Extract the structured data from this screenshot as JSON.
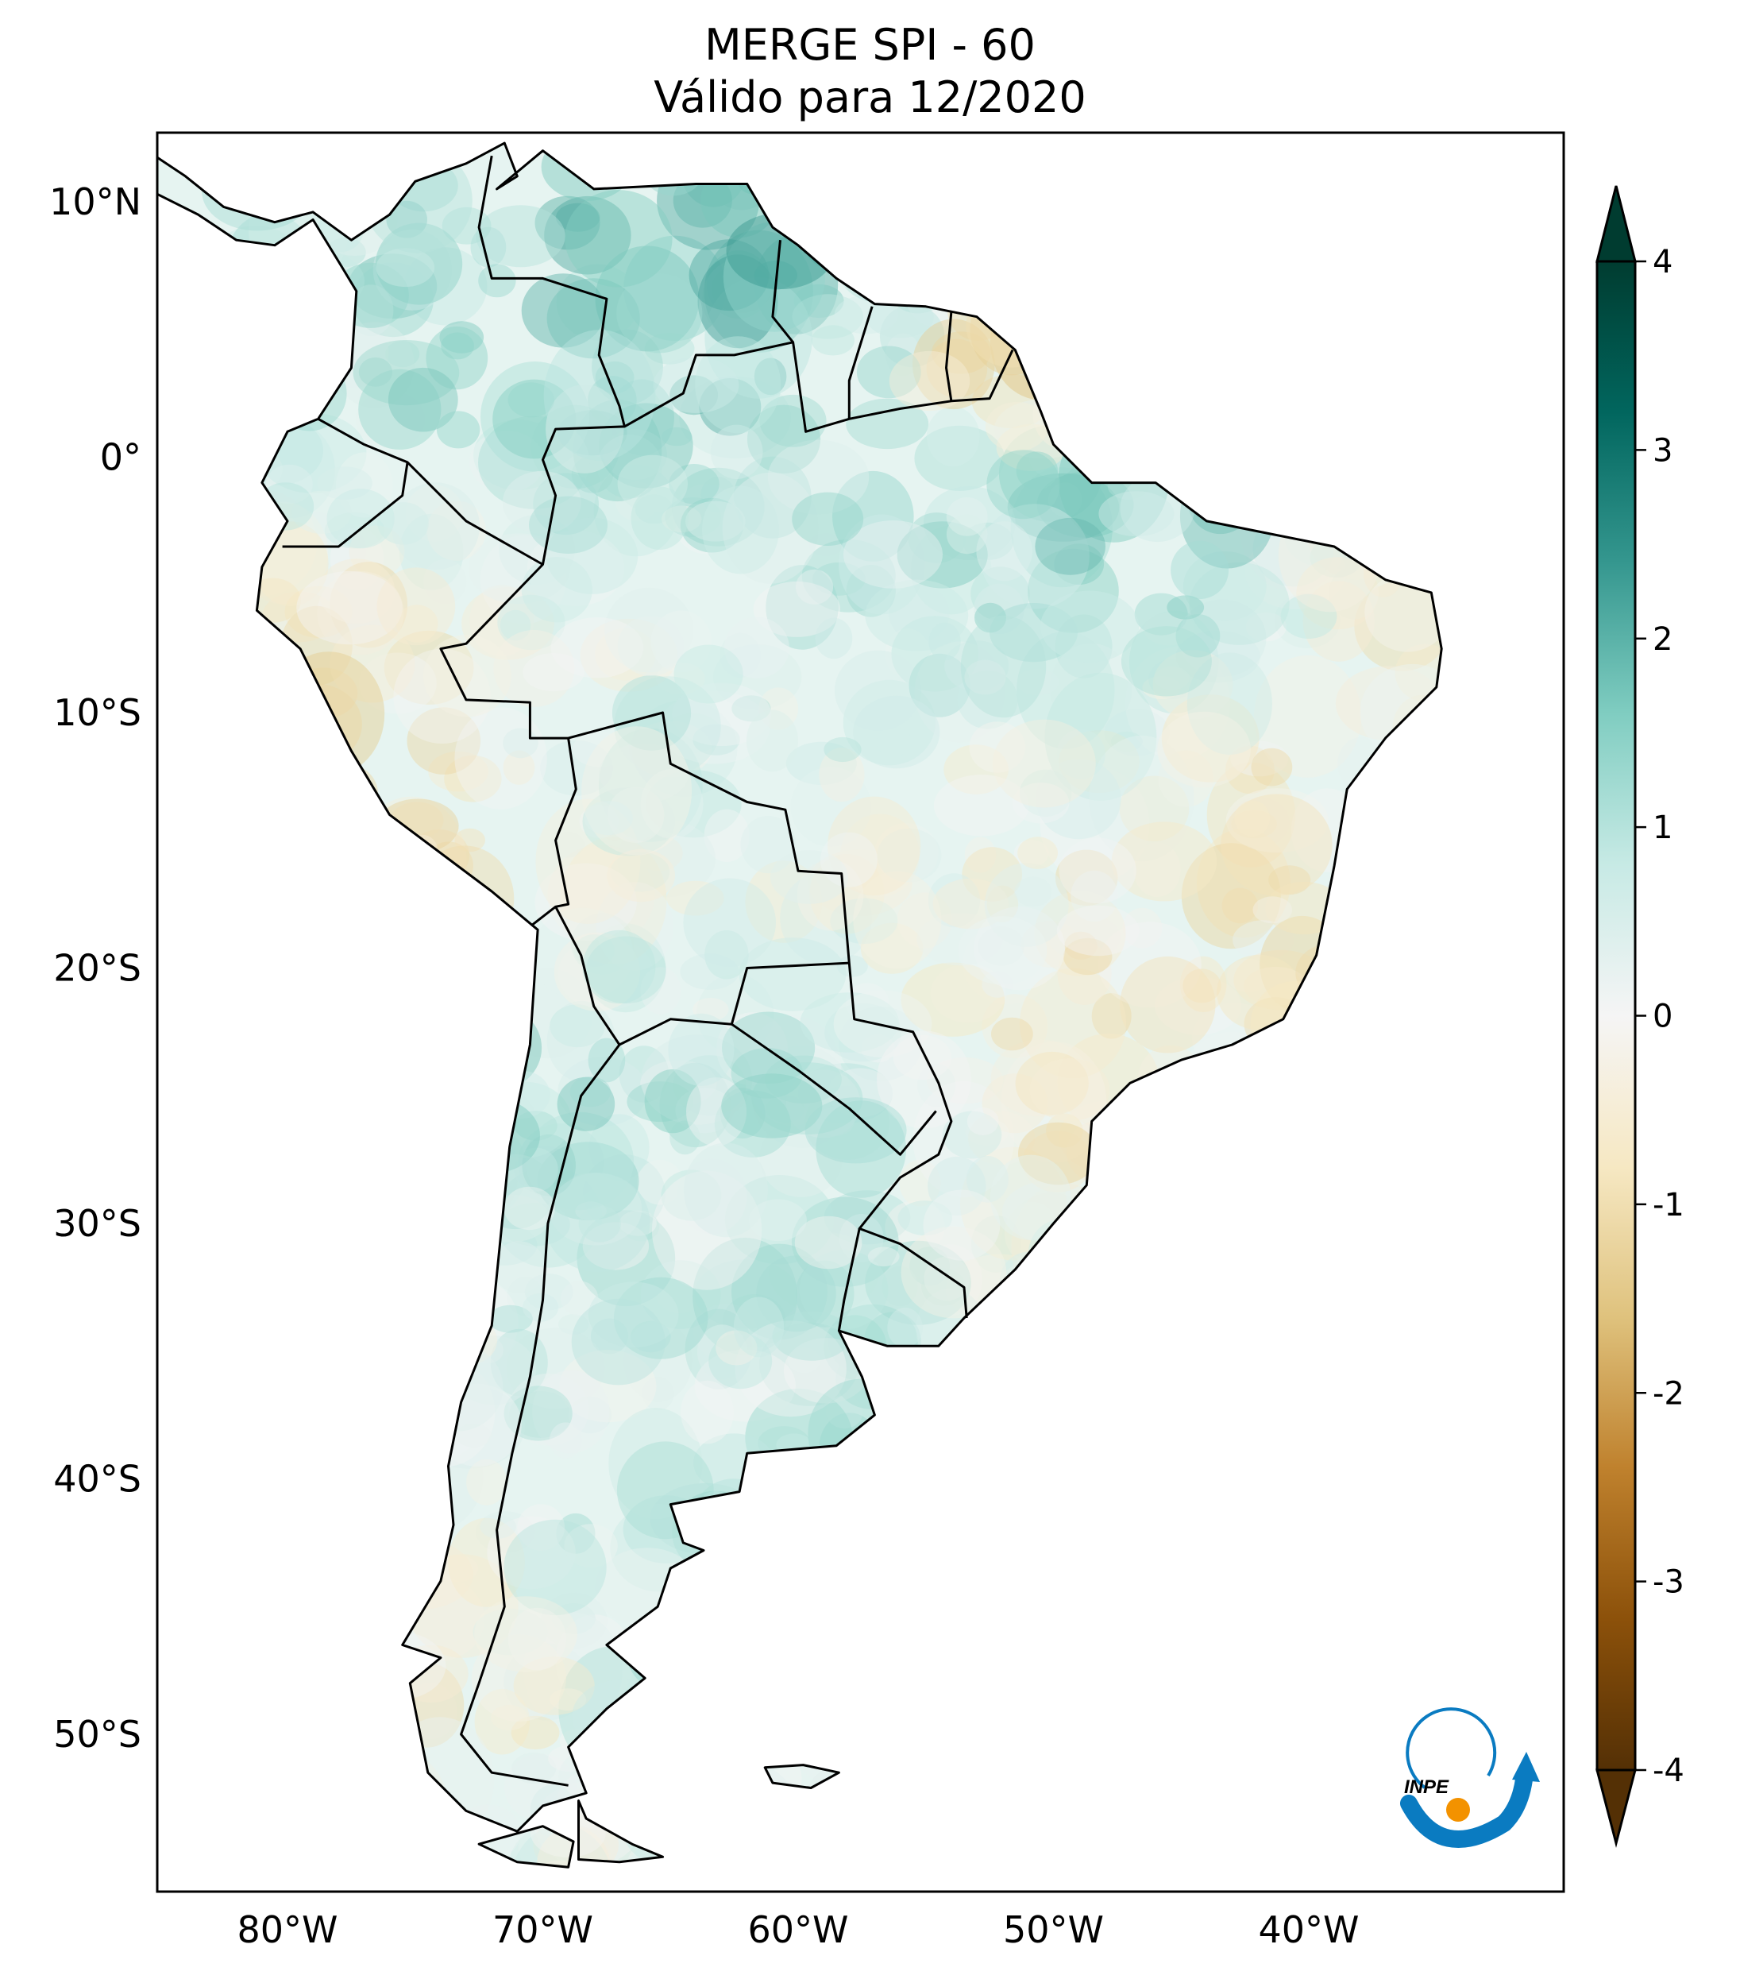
{
  "title": {
    "line1": "MERGE   SPI - 60",
    "line2": "Válido para 12/2020"
  },
  "lat_ticks": [
    {
      "value": 10,
      "label": "10°N"
    },
    {
      "value": 0,
      "label": "0°"
    },
    {
      "value": -10,
      "label": "10°S"
    },
    {
      "value": -20,
      "label": "20°S"
    },
    {
      "value": -30,
      "label": "30°S"
    },
    {
      "value": -40,
      "label": "40°S"
    },
    {
      "value": -50,
      "label": "50°S"
    }
  ],
  "lon_ticks": [
    {
      "value": -80,
      "label": "80°W"
    },
    {
      "value": -70,
      "label": "70°W"
    },
    {
      "value": -60,
      "label": "60°W"
    },
    {
      "value": -50,
      "label": "50°W"
    },
    {
      "value": -40,
      "label": "40°W"
    }
  ],
  "colorbar": {
    "range": [
      -4,
      4
    ],
    "extend": "both",
    "colormap": "BrBG",
    "ticks": [
      {
        "value": 4,
        "label": "4"
      },
      {
        "value": 3,
        "label": "3"
      },
      {
        "value": 2,
        "label": "2"
      },
      {
        "value": 1,
        "label": "1"
      },
      {
        "value": 0,
        "label": "0"
      },
      {
        "value": -1,
        "label": "-1"
      },
      {
        "value": -2,
        "label": "-2"
      },
      {
        "value": -3,
        "label": "-3"
      },
      {
        "value": -4,
        "label": "-4"
      }
    ],
    "colors": [
      "#543005",
      "#8c510a",
      "#bf812d",
      "#dfc27d",
      "#f6e8c3",
      "#f5f5f5",
      "#c7eae5",
      "#80cdc1",
      "#35978f",
      "#01665e",
      "#003c30"
    ]
  },
  "logo": {
    "text": "INPE",
    "blue": "#0a7bc1",
    "orange": "#f39200"
  }
}
